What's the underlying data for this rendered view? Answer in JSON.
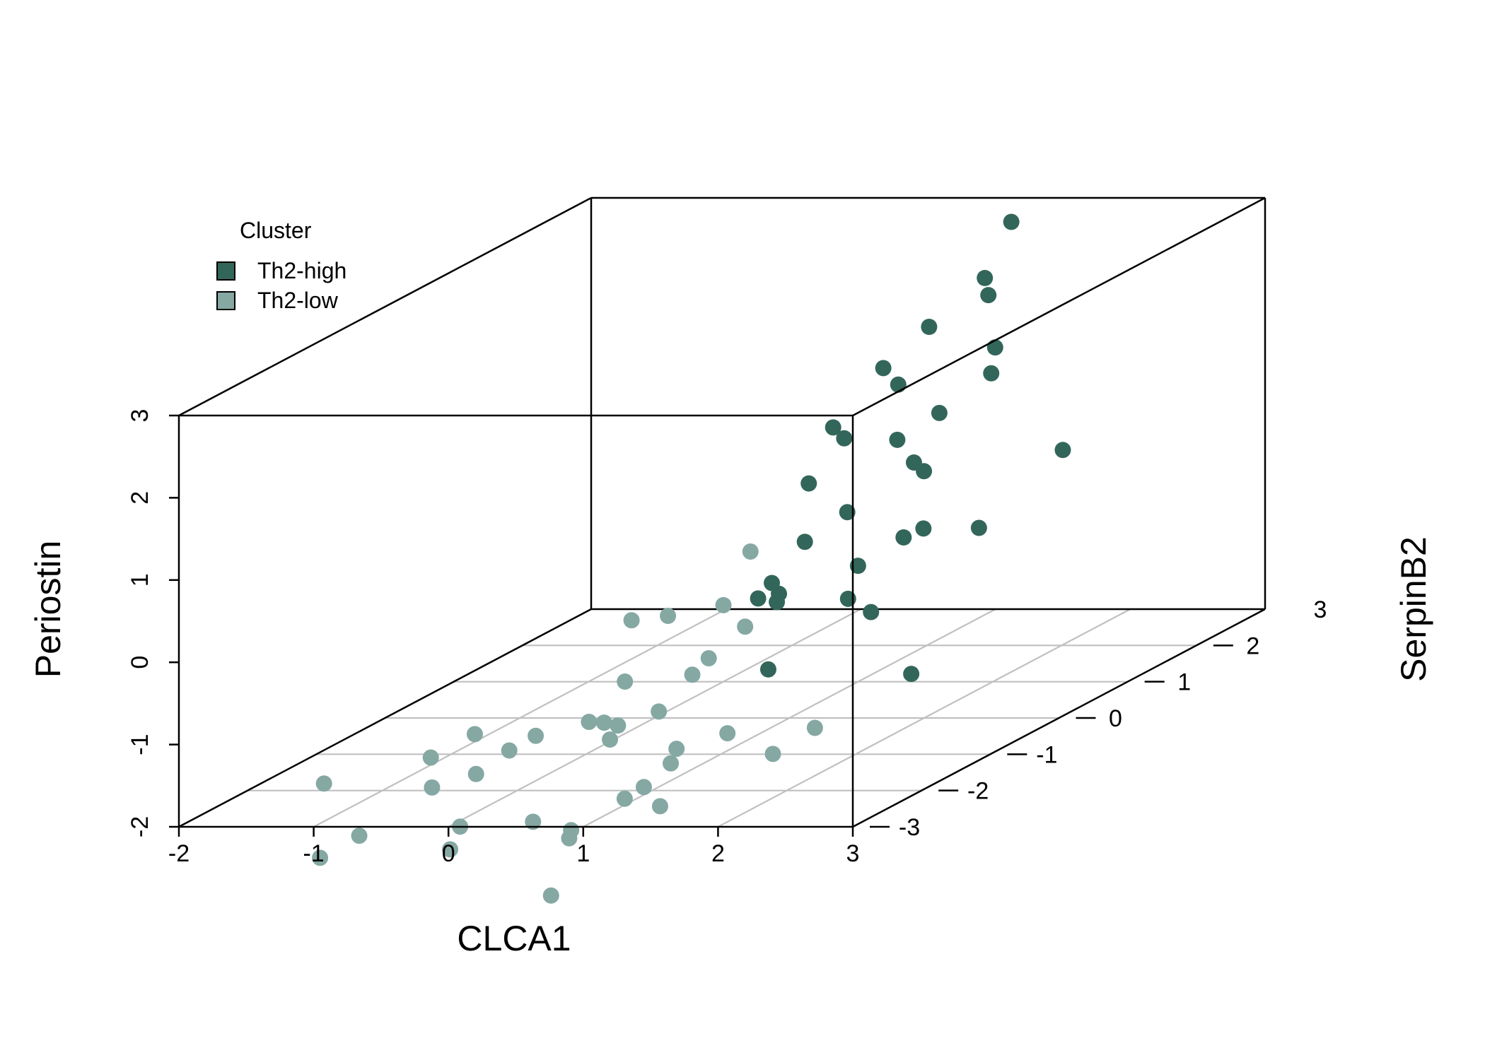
{
  "chart_data": {
    "type": "scatter",
    "subtype": "scatter3d",
    "title": "",
    "xlabel": "CLCA1",
    "ylabel": "SerpinB2",
    "zlabel": "Periostin",
    "xlim": [
      -2,
      3
    ],
    "ylim": [
      -3,
      3
    ],
    "zlim": [
      -2,
      3
    ],
    "x_ticks": [
      "-2",
      "-1",
      "0",
      "1",
      "2",
      "3"
    ],
    "y_ticks": [
      "-3",
      "-2",
      "-1",
      "0",
      "1",
      "2",
      "3"
    ],
    "z_ticks": [
      "-2",
      "-1",
      "0",
      "1",
      "2",
      "3"
    ],
    "grid": "floor",
    "legend": {
      "title": "Cluster",
      "position": "top-left",
      "items": [
        {
          "label": "Th2-high",
          "color": "#33665a"
        },
        {
          "label": "Th2-low",
          "color": "#85a8a3"
        }
      ]
    },
    "series": [
      {
        "name": "Th2-high",
        "color": "#33665a",
        "points": [
          {
            "x": 1.27,
            "y": 2.7,
            "z": 2.84
          },
          {
            "x": 1.4,
            "y": 2.06,
            "z": 2.44
          },
          {
            "x": 1.1,
            "y": 2.7,
            "z": 1.95
          },
          {
            "x": 0.91,
            "y": 2.21,
            "z": 1.78
          },
          {
            "x": 1.4,
            "y": 2.21,
            "z": 1.53
          },
          {
            "x": 1.85,
            "y": 1.27,
            "z": 1.63
          },
          {
            "x": 1.4,
            "y": 0.8,
            "z": 1.7
          },
          {
            "x": 1.71,
            "y": 0.79,
            "z": 1.36
          },
          {
            "x": 1.08,
            "y": 1.21,
            "z": 1.72
          },
          {
            "x": 2.58,
            "y": 0.88,
            "z": 0.87
          },
          {
            "x": 1.6,
            "y": -0.54,
            "z": 1.77
          },
          {
            "x": 2.23,
            "y": -0.6,
            "z": 1.37
          },
          {
            "x": 1.58,
            "y": -0.34,
            "z": 1.55
          },
          {
            "x": 1.51,
            "y": 0.57,
            "z": 1.13
          },
          {
            "x": 2.09,
            "y": -0.18,
            "z": 1.08
          },
          {
            "x": 1.2,
            "y": -0.11,
            "z": 0.9
          },
          {
            "x": 1.45,
            "y": -0.04,
            "z": 0.52
          },
          {
            "x": 2.59,
            "y": -0.36,
            "z": 0.47
          },
          {
            "x": 1.39,
            "y": -0.54,
            "z": 0.38
          },
          {
            "x": 2.28,
            "y": -0.56,
            "z": 0.55
          },
          {
            "x": 2.5,
            "y": -1.28,
            "z": 0.76
          },
          {
            "x": 1.81,
            "y": -0.59,
            "z": 0.11
          },
          {
            "x": 2.2,
            "y": -1.5,
            "z": 0.11
          },
          {
            "x": 1.4,
            "y": -1.04,
            "z": 0.1
          },
          {
            "x": 1.05,
            "y": -0.25,
            "z": -0.38
          },
          {
            "x": 1.84,
            "y": -0.46,
            "z": -0.51
          },
          {
            "x": 1.59,
            "y": -1.34,
            "z": 0.0
          },
          {
            "x": 1.4,
            "y": -1.24,
            "z": 0.0
          },
          {
            "x": 1.71,
            "y": -1.7,
            "z": -0.66
          },
          {
            "x": 2.21,
            "y": -0.6,
            "z": -1.2
          }
        ]
      },
      {
        "name": "Th2-low",
        "color": "#85a8a3",
        "points": [
          {
            "x": 0.65,
            "y": 0.12,
            "z": -0.03
          },
          {
            "x": 0.74,
            "y": -0.45,
            "z": -0.43
          },
          {
            "x": 0.41,
            "y": -0.61,
            "z": -0.49
          },
          {
            "x": 0.59,
            "y": 0.16,
            "z": -0.96
          },
          {
            "x": 0.58,
            "y": -0.35,
            "z": -1.12
          },
          {
            "x": 0.55,
            "y": -0.53,
            "z": -1.24
          },
          {
            "x": 0.41,
            "y": -1.14,
            "z": -0.31
          },
          {
            "x": 0.32,
            "y": -1.06,
            "z": -1.09
          },
          {
            "x": 0.75,
            "y": -1.41,
            "z": -1.3
          },
          {
            "x": 0.4,
            "y": -1.74,
            "z": -1.28
          },
          {
            "x": 0.26,
            "y": -1.16,
            "z": -1.75
          },
          {
            "x": 0.62,
            "y": -1.75,
            "z": -1.32
          },
          {
            "x": 1.31,
            "y": -1.51,
            "z": -1.52
          },
          {
            "x": 1.49,
            "y": -0.59,
            "z": -1.86
          },
          {
            "x": 1.07,
            "y": -1.78,
            "z": -1.59
          },
          {
            "x": 0.65,
            "y": -2.01,
            "z": -1.17
          },
          {
            "x": 0.92,
            "y": -1.57,
            "z": -1.86
          },
          {
            "x": 1.51,
            "y": -1.24,
            "z": -1.89
          },
          {
            "x": -0.09,
            "y": -2.44,
            "z": -1.12
          },
          {
            "x": 0.27,
            "y": -2.26,
            "z": -1.22
          },
          {
            "x": 0.67,
            "y": -1.75,
            "z": -2.21
          },
          {
            "x": -0.33,
            "y": -2.61,
            "z": -1.33
          },
          {
            "x": -0.04,
            "y": -2.52,
            "z": -1.57
          },
          {
            "x": 0.13,
            "y": -2.37,
            "z": -1.35
          },
          {
            "x": -0.24,
            "y": -2.36,
            "z": -2.28
          },
          {
            "x": 0.96,
            "y": -2.04,
            "z": -1.94
          },
          {
            "x": 1.05,
            "y": -1.98,
            "z": -2.2
          },
          {
            "x": -0.27,
            "y": -2.71,
            "z": -1.65
          },
          {
            "x": -0.11,
            "y": -2.76,
            "z": -2.38
          },
          {
            "x": 0.51,
            "y": -2.77,
            "z": -2.04
          },
          {
            "x": 0.86,
            "y": -2.93,
            "z": -2.17
          },
          {
            "x": 0.9,
            "y": -2.98,
            "z": -2.05
          },
          {
            "x": 0.71,
            "y": -2.9,
            "z": -2.88
          },
          {
            "x": -1.0,
            "y": -2.85,
            "z": -1.54
          },
          {
            "x": -0.56,
            "y": -3.2,
            "z": -2.02
          },
          {
            "x": -1.06,
            "y": -2.79,
            "z": -2.47
          }
        ]
      }
    ]
  }
}
